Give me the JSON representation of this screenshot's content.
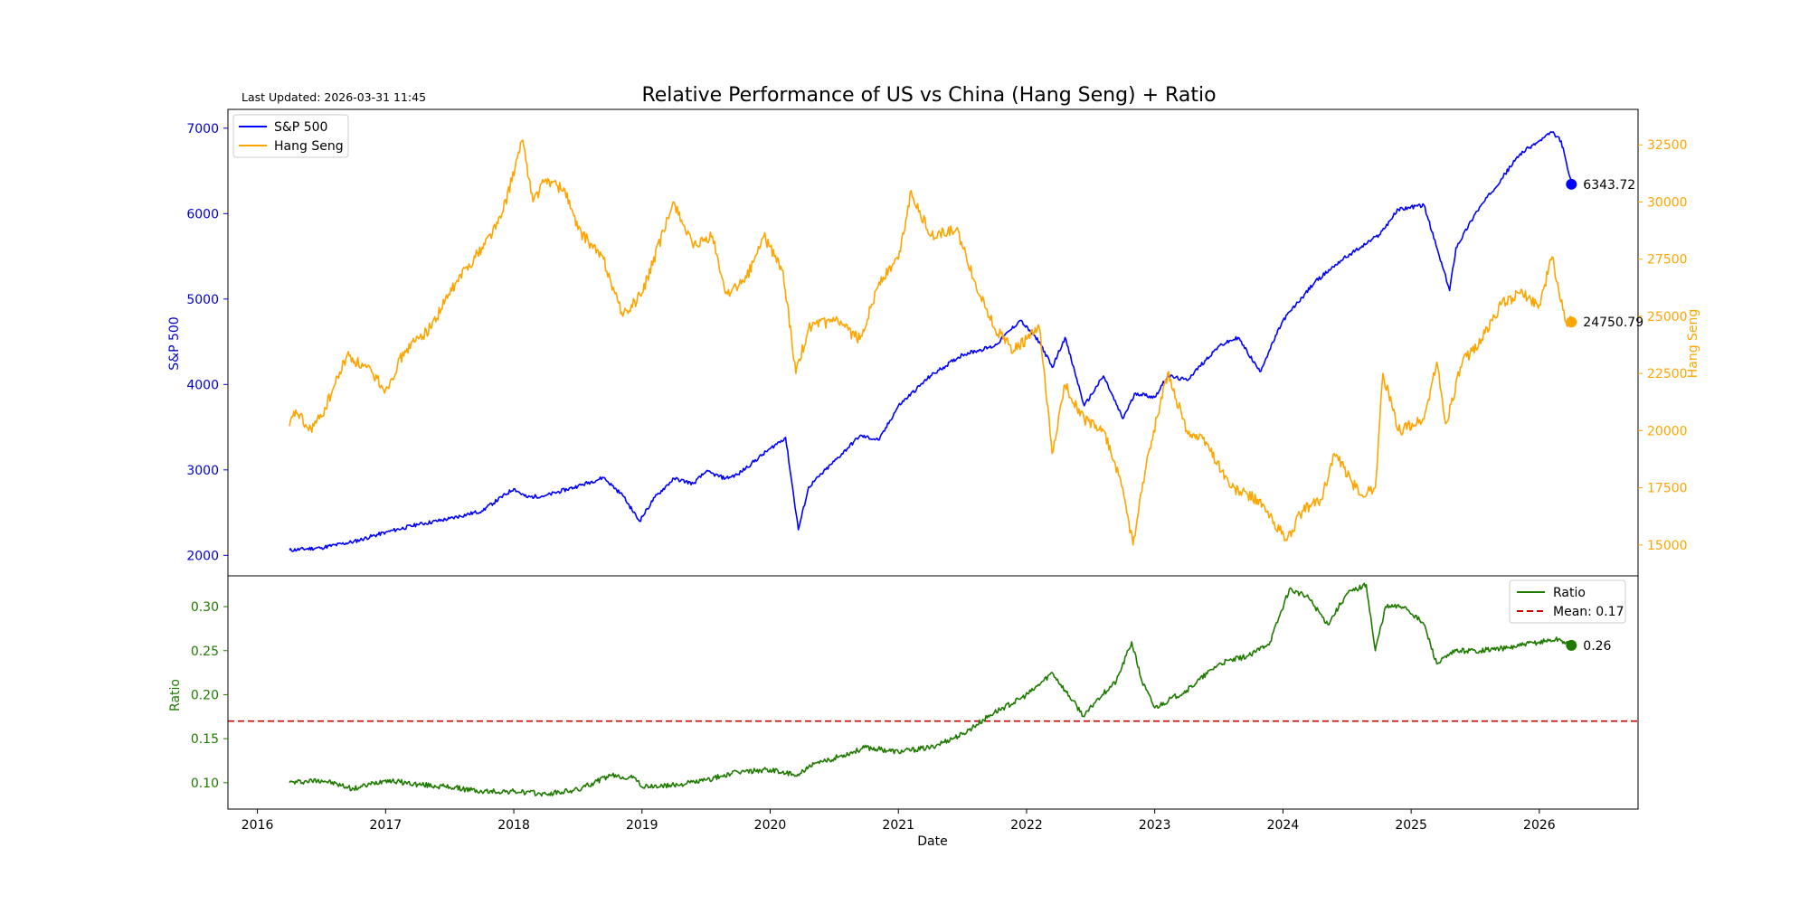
{
  "chart_data": [
    {
      "type": "line",
      "title": "Relative Performance of US vs China (Hang Seng) + Ratio",
      "note": "Last Updated: 2026-03-31 11:45",
      "xlabel": "",
      "ylabel": "S&P 500",
      "y2label": "Hang Seng",
      "xlim": [
        2015.77,
        2026.77
      ],
      "ylim": [
        1760,
        7220
      ],
      "y2lim": [
        13650,
        34050
      ],
      "yticks": [
        2000,
        3000,
        4000,
        5000,
        6000,
        7000
      ],
      "y2ticks": [
        15000,
        17500,
        20000,
        22500,
        25000,
        27500,
        30000,
        32500
      ],
      "legend": {
        "placement": "top-left",
        "entries": [
          "S&P 500",
          "Hang Seng"
        ]
      },
      "series": [
        {
          "name": "S&P 500",
          "axis": "left",
          "color": "#0000ff",
          "last_label": "6343.72",
          "points": [
            [
              2016.25,
              2060
            ],
            [
              2016.5,
              2090
            ],
            [
              2016.75,
              2160
            ],
            [
              2017.0,
              2270
            ],
            [
              2017.25,
              2360
            ],
            [
              2017.5,
              2430
            ],
            [
              2017.75,
              2520
            ],
            [
              2018.0,
              2780
            ],
            [
              2018.1,
              2680
            ],
            [
              2018.25,
              2700
            ],
            [
              2018.5,
              2810
            ],
            [
              2018.7,
              2910
            ],
            [
              2018.85,
              2700
            ],
            [
              2018.98,
              2400
            ],
            [
              2019.1,
              2680
            ],
            [
              2019.25,
              2900
            ],
            [
              2019.4,
              2840
            ],
            [
              2019.5,
              2980
            ],
            [
              2019.65,
              2900
            ],
            [
              2019.75,
              2950
            ],
            [
              2020.0,
              3250
            ],
            [
              2020.12,
              3380
            ],
            [
              2020.22,
              2300
            ],
            [
              2020.3,
              2800
            ],
            [
              2020.5,
              3100
            ],
            [
              2020.7,
              3400
            ],
            [
              2020.85,
              3350
            ],
            [
              2021.0,
              3750
            ],
            [
              2021.25,
              4100
            ],
            [
              2021.5,
              4350
            ],
            [
              2021.75,
              4450
            ],
            [
              2021.95,
              4750
            ],
            [
              2022.1,
              4500
            ],
            [
              2022.2,
              4200
            ],
            [
              2022.3,
              4550
            ],
            [
              2022.45,
              3750
            ],
            [
              2022.6,
              4100
            ],
            [
              2022.75,
              3600
            ],
            [
              2022.85,
              3900
            ],
            [
              2023.0,
              3850
            ],
            [
              2023.1,
              4100
            ],
            [
              2023.25,
              4050
            ],
            [
              2023.5,
              4450
            ],
            [
              2023.65,
              4550
            ],
            [
              2023.82,
              4150
            ],
            [
              2024.0,
              4750
            ],
            [
              2024.25,
              5200
            ],
            [
              2024.45,
              5450
            ],
            [
              2024.6,
              5600
            ],
            [
              2024.75,
              5750
            ],
            [
              2024.9,
              6050
            ],
            [
              2025.1,
              6100
            ],
            [
              2025.22,
              5500
            ],
            [
              2025.3,
              5100
            ],
            [
              2025.35,
              5600
            ],
            [
              2025.5,
              6000
            ],
            [
              2025.7,
              6400
            ],
            [
              2025.85,
              6700
            ],
            [
              2026.0,
              6850
            ],
            [
              2026.1,
              6950
            ],
            [
              2026.17,
              6850
            ],
            [
              2026.25,
              6343.72
            ]
          ]
        },
        {
          "name": "Hang Seng",
          "axis": "right",
          "color": "#ffa500",
          "last_label": "24750.79",
          "points": [
            [
              2016.25,
              20200
            ],
            [
              2016.3,
              20900
            ],
            [
              2016.4,
              20000
            ],
            [
              2016.5,
              20600
            ],
            [
              2016.7,
              23300
            ],
            [
              2016.9,
              22500
            ],
            [
              2017.0,
              21800
            ],
            [
              2017.15,
              23500
            ],
            [
              2017.35,
              24500
            ],
            [
              2017.55,
              26500
            ],
            [
              2017.75,
              28000
            ],
            [
              2017.9,
              29300
            ],
            [
              2018.07,
              32700
            ],
            [
              2018.15,
              30000
            ],
            [
              2018.25,
              31000
            ],
            [
              2018.4,
              30500
            ],
            [
              2018.5,
              28800
            ],
            [
              2018.7,
              27500
            ],
            [
              2018.85,
              25000
            ],
            [
              2019.0,
              26000
            ],
            [
              2019.25,
              30000
            ],
            [
              2019.4,
              28000
            ],
            [
              2019.55,
              28500
            ],
            [
              2019.65,
              26000
            ],
            [
              2019.8,
              26500
            ],
            [
              2019.95,
              28500
            ],
            [
              2020.1,
              27000
            ],
            [
              2020.2,
              22500
            ],
            [
              2020.3,
              24500
            ],
            [
              2020.5,
              24800
            ],
            [
              2020.7,
              24000
            ],
            [
              2020.85,
              26500
            ],
            [
              2021.0,
              27500
            ],
            [
              2021.1,
              30500
            ],
            [
              2021.25,
              28500
            ],
            [
              2021.45,
              28800
            ],
            [
              2021.6,
              26500
            ],
            [
              2021.75,
              24500
            ],
            [
              2021.9,
              23500
            ],
            [
              2022.0,
              24000
            ],
            [
              2022.1,
              24500
            ],
            [
              2022.2,
              19000
            ],
            [
              2022.3,
              22000
            ],
            [
              2022.45,
              20500
            ],
            [
              2022.6,
              20000
            ],
            [
              2022.75,
              17500
            ],
            [
              2022.83,
              15000
            ],
            [
              2022.95,
              19000
            ],
            [
              2023.1,
              22500
            ],
            [
              2023.25,
              20000
            ],
            [
              2023.4,
              19500
            ],
            [
              2023.6,
              17500
            ],
            [
              2023.8,
              17000
            ],
            [
              2024.03,
              15200
            ],
            [
              2024.15,
              16500
            ],
            [
              2024.3,
              17000
            ],
            [
              2024.4,
              19000
            ],
            [
              2024.6,
              17200
            ],
            [
              2024.72,
              17500
            ],
            [
              2024.78,
              22500
            ],
            [
              2024.9,
              20000
            ],
            [
              2025.1,
              20500
            ],
            [
              2025.2,
              23000
            ],
            [
              2025.27,
              20300
            ],
            [
              2025.4,
              23000
            ],
            [
              2025.55,
              24000
            ],
            [
              2025.7,
              25500
            ],
            [
              2025.85,
              26000
            ],
            [
              2026.0,
              25500
            ],
            [
              2026.1,
              27600
            ],
            [
              2026.2,
              24800
            ],
            [
              2026.25,
              24750.79
            ]
          ]
        }
      ]
    },
    {
      "type": "line",
      "title": "",
      "xlabel": "Date",
      "ylabel": "Ratio",
      "xlim": [
        2015.77,
        2026.77
      ],
      "ylim": [
        0.07,
        0.335
      ],
      "yticks": [
        0.1,
        0.15,
        0.2,
        0.25,
        0.3
      ],
      "ytick_labels": [
        "0.10",
        "0.15",
        "0.20",
        "0.25",
        "0.30"
      ],
      "xticks": [
        2016,
        2017,
        2018,
        2019,
        2020,
        2021,
        2022,
        2023,
        2024,
        2025,
        2026
      ],
      "xtick_labels": [
        "2016",
        "2017",
        "2018",
        "2019",
        "2020",
        "2021",
        "2022",
        "2023",
        "2024",
        "2025",
        "2026"
      ],
      "legend": {
        "placement": "top-right",
        "entries": [
          "Ratio",
          "Mean: 0.17"
        ]
      },
      "mean_line": {
        "value": 0.17,
        "label": "Mean: 0.17",
        "color": "#cc0000"
      },
      "series": [
        {
          "name": "Ratio",
          "color": "#1f7a00",
          "last_label": "0.26",
          "points": [
            [
              2016.25,
              0.1
            ],
            [
              2016.5,
              0.103
            ],
            [
              2016.75,
              0.093
            ],
            [
              2017.0,
              0.103
            ],
            [
              2017.25,
              0.098
            ],
            [
              2017.5,
              0.095
            ],
            [
              2017.75,
              0.09
            ],
            [
              2018.0,
              0.09
            ],
            [
              2018.25,
              0.087
            ],
            [
              2018.5,
              0.092
            ],
            [
              2018.75,
              0.108
            ],
            [
              2018.95,
              0.105
            ],
            [
              2019.0,
              0.095
            ],
            [
              2019.25,
              0.097
            ],
            [
              2019.5,
              0.103
            ],
            [
              2019.75,
              0.112
            ],
            [
              2020.0,
              0.115
            ],
            [
              2020.2,
              0.108
            ],
            [
              2020.3,
              0.118
            ],
            [
              2020.5,
              0.128
            ],
            [
              2020.75,
              0.14
            ],
            [
              2021.0,
              0.135
            ],
            [
              2021.25,
              0.14
            ],
            [
              2021.5,
              0.155
            ],
            [
              2021.75,
              0.18
            ],
            [
              2021.95,
              0.195
            ],
            [
              2022.05,
              0.205
            ],
            [
              2022.2,
              0.225
            ],
            [
              2022.3,
              0.205
            ],
            [
              2022.45,
              0.175
            ],
            [
              2022.55,
              0.195
            ],
            [
              2022.7,
              0.215
            ],
            [
              2022.82,
              0.26
            ],
            [
              2022.9,
              0.215
            ],
            [
              2023.0,
              0.185
            ],
            [
              2023.25,
              0.205
            ],
            [
              2023.5,
              0.235
            ],
            [
              2023.75,
              0.245
            ],
            [
              2023.9,
              0.26
            ],
            [
              2024.05,
              0.32
            ],
            [
              2024.2,
              0.31
            ],
            [
              2024.35,
              0.28
            ],
            [
              2024.5,
              0.315
            ],
            [
              2024.65,
              0.325
            ],
            [
              2024.72,
              0.25
            ],
            [
              2024.8,
              0.3
            ],
            [
              2024.95,
              0.3
            ],
            [
              2025.1,
              0.28
            ],
            [
              2025.2,
              0.235
            ],
            [
              2025.35,
              0.25
            ],
            [
              2025.5,
              0.25
            ],
            [
              2025.75,
              0.253
            ],
            [
              2026.0,
              0.26
            ],
            [
              2026.15,
              0.263
            ],
            [
              2026.25,
              0.256
            ]
          ]
        }
      ]
    }
  ]
}
